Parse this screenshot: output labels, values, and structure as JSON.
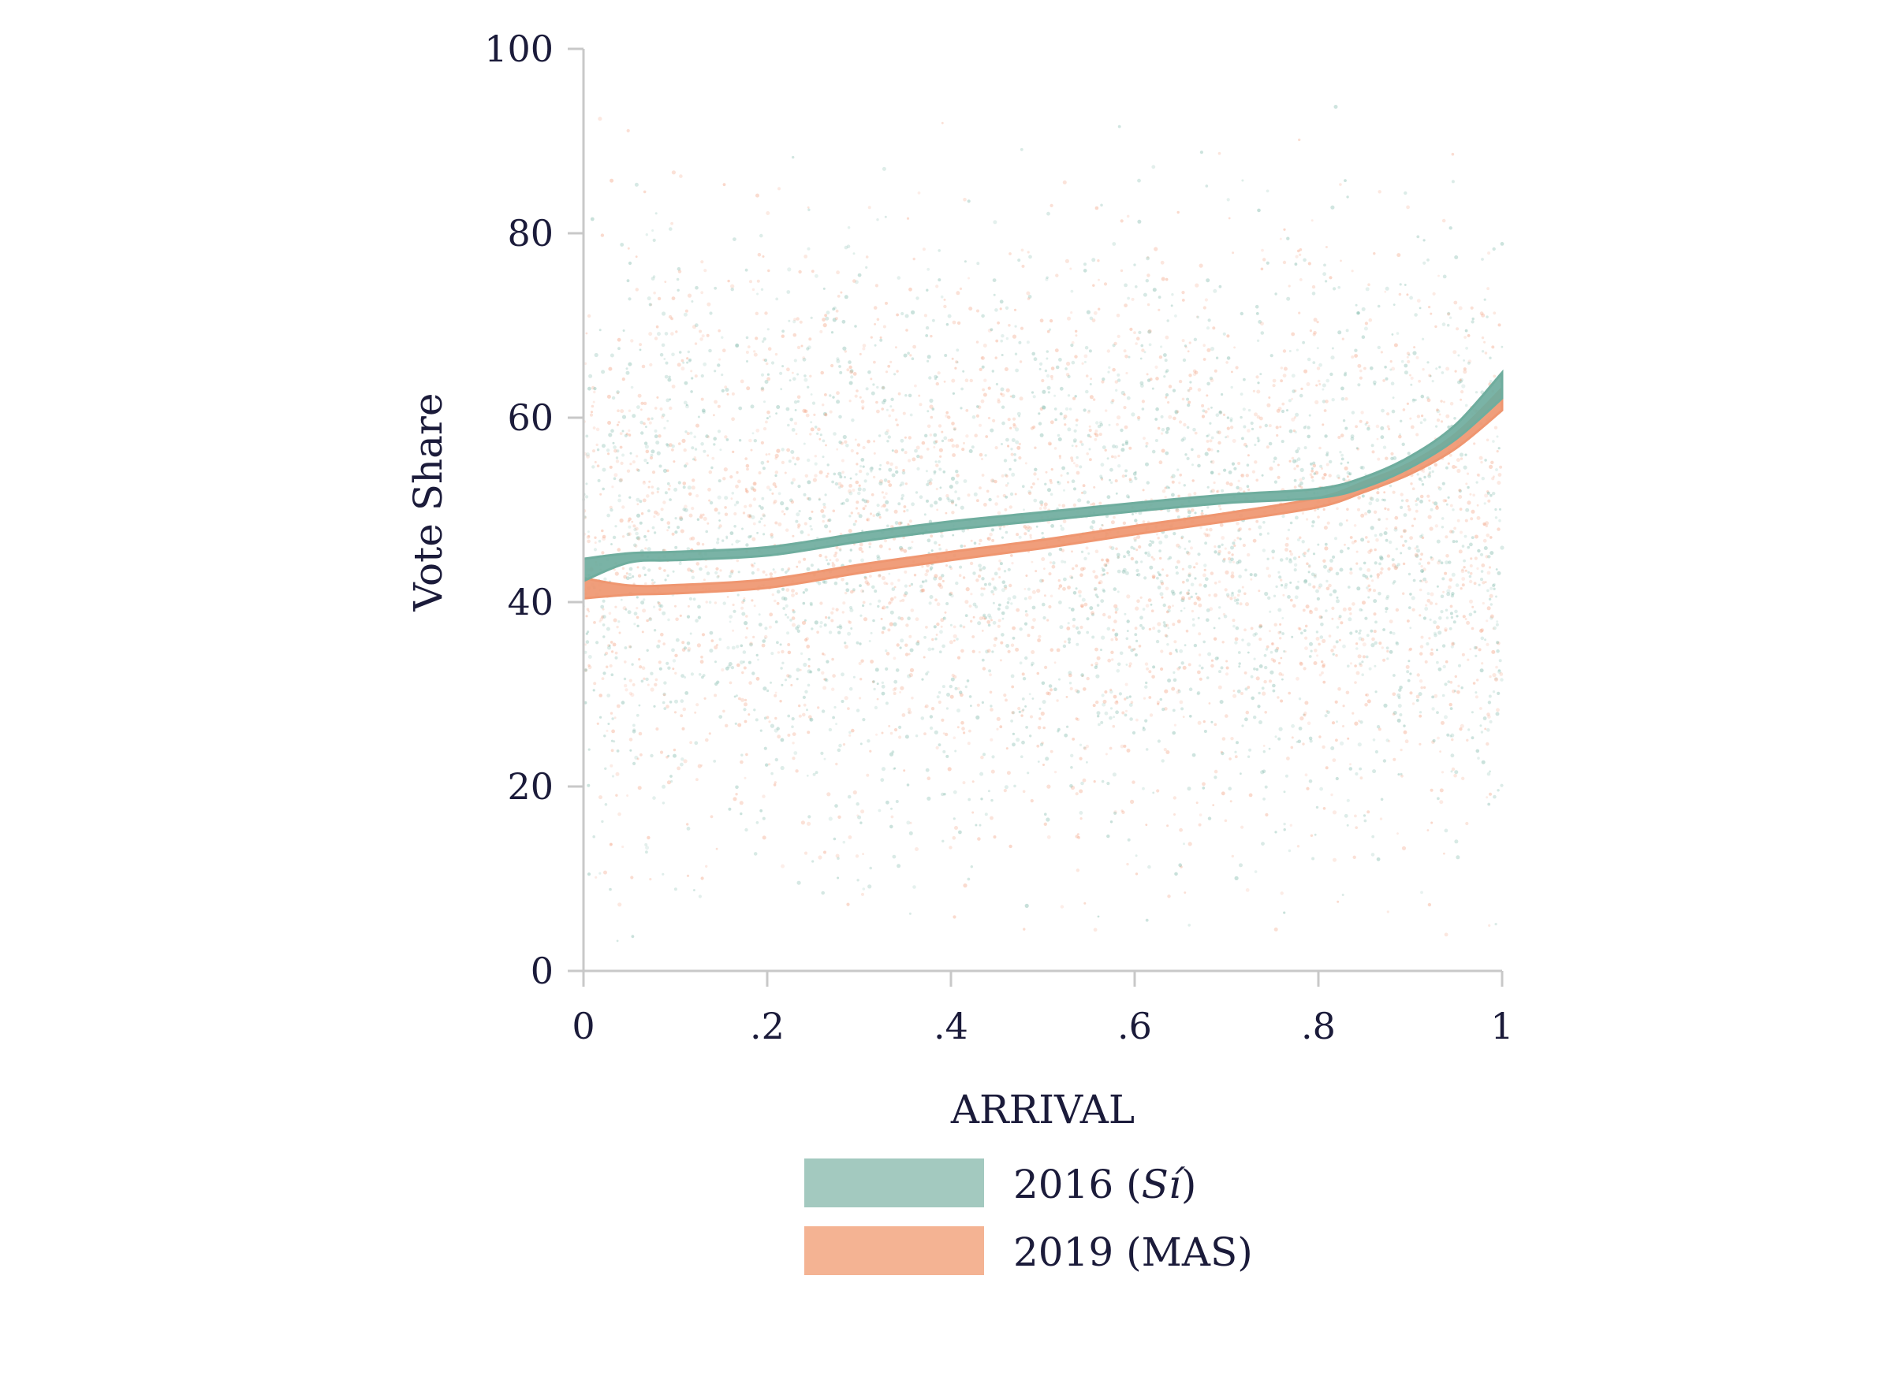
{
  "chart_data": {
    "type": "line",
    "title": "",
    "xlabel": "ARRIVAL",
    "ylabel": "Vote Share",
    "xlim": [
      0,
      1
    ],
    "ylim": [
      0,
      100
    ],
    "x_ticks": [
      {
        "value": 0,
        "label": "0"
      },
      {
        "value": 0.2,
        "label": ".2"
      },
      {
        "value": 0.4,
        "label": ".4"
      },
      {
        "value": 0.6,
        "label": ".6"
      },
      {
        "value": 0.8,
        "label": ".8"
      },
      {
        "value": 1,
        "label": "1"
      }
    ],
    "y_ticks": [
      {
        "value": 0,
        "label": "0"
      },
      {
        "value": 20,
        "label": "20"
      },
      {
        "value": 40,
        "label": "40"
      },
      {
        "value": 60,
        "label": "60"
      },
      {
        "value": 80,
        "label": "80"
      },
      {
        "value": 100,
        "label": "100"
      }
    ],
    "grid": false,
    "legend_position": "bottom",
    "series": [
      {
        "name": "2016 (Sí)",
        "name_parts": [
          "2016 (",
          "Sí",
          ")"
        ],
        "color": "#6fad9e",
        "legend_color": "#a3c9bf",
        "x": [
          0,
          0.05,
          0.1,
          0.2,
          0.3,
          0.4,
          0.5,
          0.6,
          0.7,
          0.8,
          0.85,
          0.9,
          0.95,
          1.0
        ],
        "y": [
          43.5,
          44.8,
          45.0,
          45.5,
          47.0,
          48.3,
          49.3,
          50.3,
          51.2,
          51.8,
          53.0,
          55.2,
          58.5,
          63.5
        ],
        "band_halfwidth": [
          1.2,
          0.5,
          0.45,
          0.45,
          0.45,
          0.45,
          0.45,
          0.45,
          0.45,
          0.5,
          0.55,
          0.6,
          0.8,
          1.4
        ]
      },
      {
        "name": "2019 (MAS)",
        "name_parts": [
          "2019 (MAS)",
          "",
          ""
        ],
        "color": "#ef9670",
        "legend_color": "#f4b393",
        "x": [
          0,
          0.05,
          0.1,
          0.2,
          0.3,
          0.4,
          0.5,
          0.6,
          0.7,
          0.8,
          0.85,
          0.9,
          0.95,
          1.0
        ],
        "y": [
          41.5,
          41.3,
          41.4,
          42.0,
          43.6,
          45.0,
          46.3,
          47.8,
          49.2,
          50.8,
          52.5,
          54.5,
          57.5,
          62.0
        ],
        "band_halfwidth": [
          1.1,
          0.5,
          0.45,
          0.45,
          0.45,
          0.45,
          0.45,
          0.45,
          0.45,
          0.5,
          0.55,
          0.6,
          0.8,
          1.2
        ]
      }
    ],
    "scatter_background": {
      "description_colors": [
        "#7fb8aa",
        "#f2a283"
      ]
    }
  }
}
